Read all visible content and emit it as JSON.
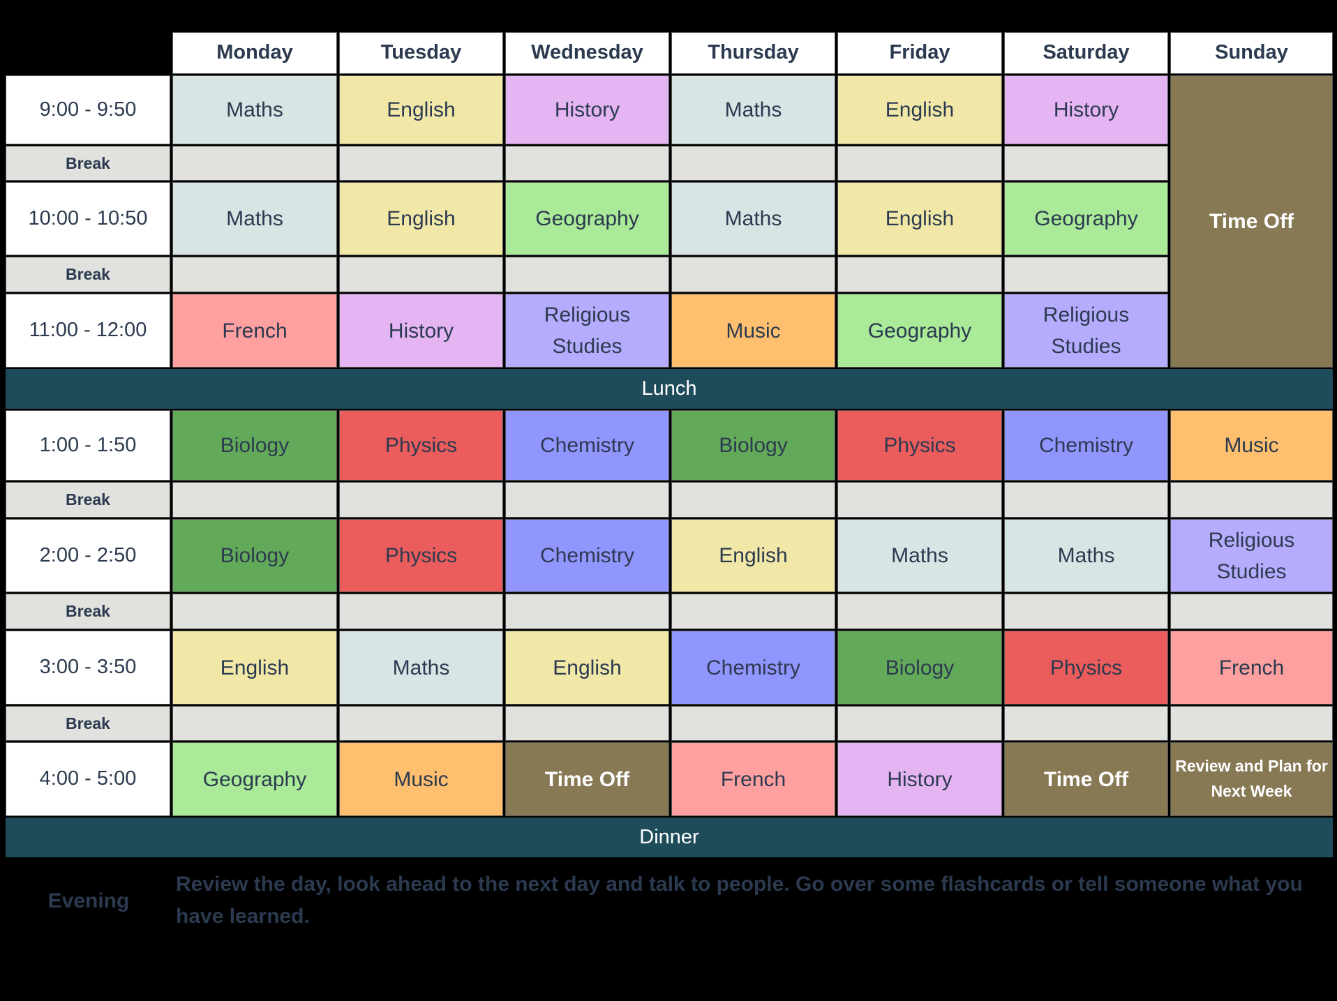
{
  "colors": {
    "Maths": "#d7e5e5",
    "English": "#f1e8a8",
    "History": "#e5b5f3",
    "Geography": "#aaea99",
    "French": "#fea0a0",
    "Music": "#fec06e",
    "Religious Studies": "#b6acfe",
    "Biology": "#63a95a",
    "Physics": "#eb5c5c",
    "Chemistry": "#9196fe",
    "Time Off": "#887955",
    "Review and Plan for Next Week": "#887955",
    "band": "#1e4c5b",
    "break": "#e1e1dd",
    "text": "#2c3a50"
  },
  "days": [
    "Monday",
    "Tuesday",
    "Wednesday",
    "Thursday",
    "Friday",
    "Saturday",
    "Sunday"
  ],
  "break_label": "Break",
  "sessions": [
    {
      "time": "9:00 - 9:50",
      "cells": [
        "Maths",
        "English",
        "History",
        "Maths",
        "English",
        "History"
      ]
    },
    {
      "time": "10:00 - 10:50",
      "cells": [
        "Maths",
        "English",
        "Geography",
        "Maths",
        "English",
        "Geography"
      ]
    },
    {
      "time": "11:00 - 12:00",
      "cells": [
        "French",
        "History",
        "Religious Studies",
        "Music",
        "Geography",
        "Religious Studies"
      ]
    },
    {
      "time": "1:00 - 1:50",
      "cells": [
        "Biology",
        "Physics",
        "Chemistry",
        "Biology",
        "Physics",
        "Chemistry",
        "Music"
      ]
    },
    {
      "time": "2:00 - 2:50",
      "cells": [
        "Biology",
        "Physics",
        "Chemistry",
        "English",
        "Maths",
        "Maths",
        "Religious Studies"
      ]
    },
    {
      "time": "3:00 - 3:50",
      "cells": [
        "English",
        "Maths",
        "English",
        "Chemistry",
        "Biology",
        "Physics",
        "French"
      ]
    },
    {
      "time": "4:00 - 5:00",
      "cells": [
        "Geography",
        "Music",
        "Time Off",
        "French",
        "History",
        "Time Off",
        "Review and Plan for Next Week"
      ]
    }
  ],
  "sunday_morning": "Time Off",
  "lunch_label": "Lunch",
  "dinner_label": "Dinner",
  "evening": {
    "label": "Evening",
    "text": "Review the day, look ahead to the next day and talk to people. Go over some flashcards or tell someone what you have learned."
  }
}
